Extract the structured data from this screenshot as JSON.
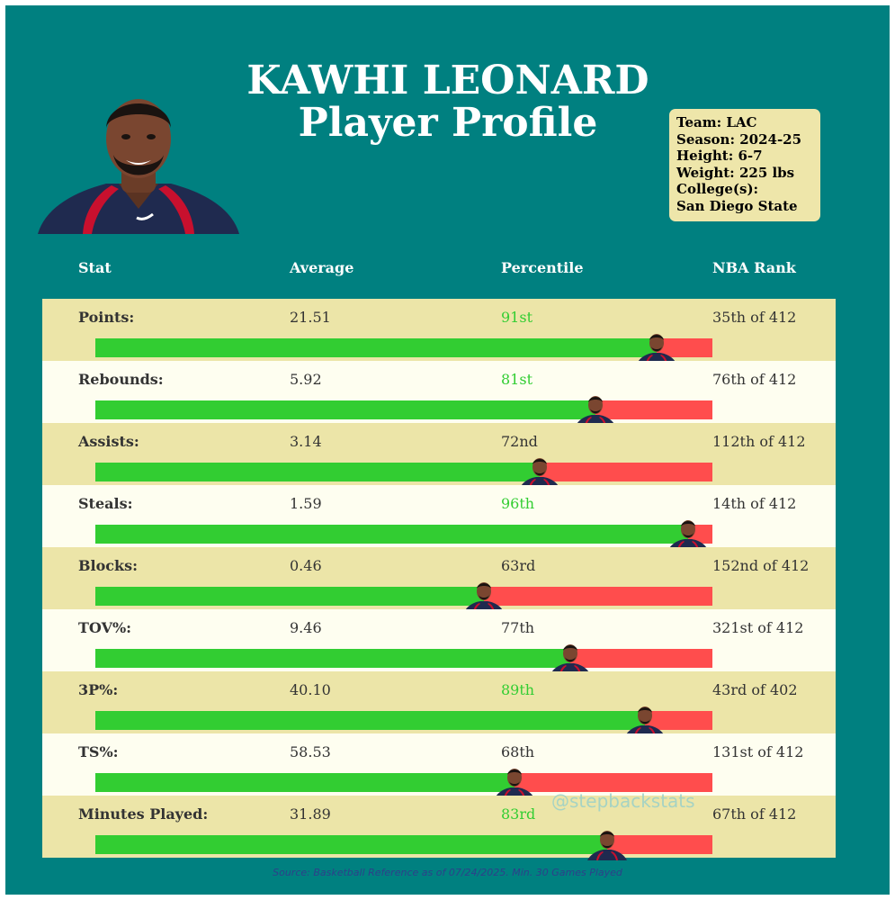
{
  "header": {
    "name": "KAWHI LEONARD",
    "subtitle": "Player Profile"
  },
  "info": {
    "team": "Team: LAC",
    "season": "Season: 2024-25",
    "height": "Height: 6-7",
    "weight": "Weight: 225 lbs",
    "college_label": "College(s):",
    "college": "San Diego State"
  },
  "columns": {
    "stat": "Stat",
    "average": "Average",
    "percentile": "Percentile",
    "rank": "NBA Rank"
  },
  "chart_data": {
    "type": "bar",
    "title": "KAWHI LEONARD Player Profile",
    "orientation": "horizontal",
    "xlim": [
      0,
      100
    ],
    "value_kind": "percentile",
    "colors": {
      "fill": "#32cd32",
      "remainder": "#ff4d4d",
      "highlight_text": "#32cd32"
    },
    "rows": [
      {
        "stat": "Points:",
        "average": "21.51",
        "percentile_label": "91st",
        "percentile": 91,
        "rank": "35th of 412",
        "highlight": true
      },
      {
        "stat": "Rebounds:",
        "average": "5.92",
        "percentile_label": "81st",
        "percentile": 81,
        "rank": "76th of 412",
        "highlight": true
      },
      {
        "stat": "Assists:",
        "average": "3.14",
        "percentile_label": "72nd",
        "percentile": 72,
        "rank": "112th of 412",
        "highlight": false
      },
      {
        "stat": "Steals:",
        "average": "1.59",
        "percentile_label": "96th",
        "percentile": 96,
        "rank": "14th of 412",
        "highlight": true
      },
      {
        "stat": "Blocks:",
        "average": "0.46",
        "percentile_label": "63rd",
        "percentile": 63,
        "rank": "152nd of 412",
        "highlight": false
      },
      {
        "stat": "TOV%:",
        "average": "9.46",
        "percentile_label": "77th",
        "percentile": 77,
        "rank": "321st of 412",
        "highlight": false
      },
      {
        "stat": "3P%:",
        "average": "40.10",
        "percentile_label": "89th",
        "percentile": 89,
        "rank": "43rd of 402",
        "highlight": true
      },
      {
        "stat": "TS%:",
        "average": "58.53",
        "percentile_label": "68th",
        "percentile": 68,
        "rank": "131st of 412",
        "highlight": false
      },
      {
        "stat": "Minutes Played:",
        "average": "31.89",
        "percentile_label": "83rd",
        "percentile": 83,
        "rank": "67th of 412",
        "highlight": true
      }
    ]
  },
  "watermark": "@stepbackstats",
  "source": "Source: Basketball Reference as of 07/24/2025. Min. 30 Games Played"
}
